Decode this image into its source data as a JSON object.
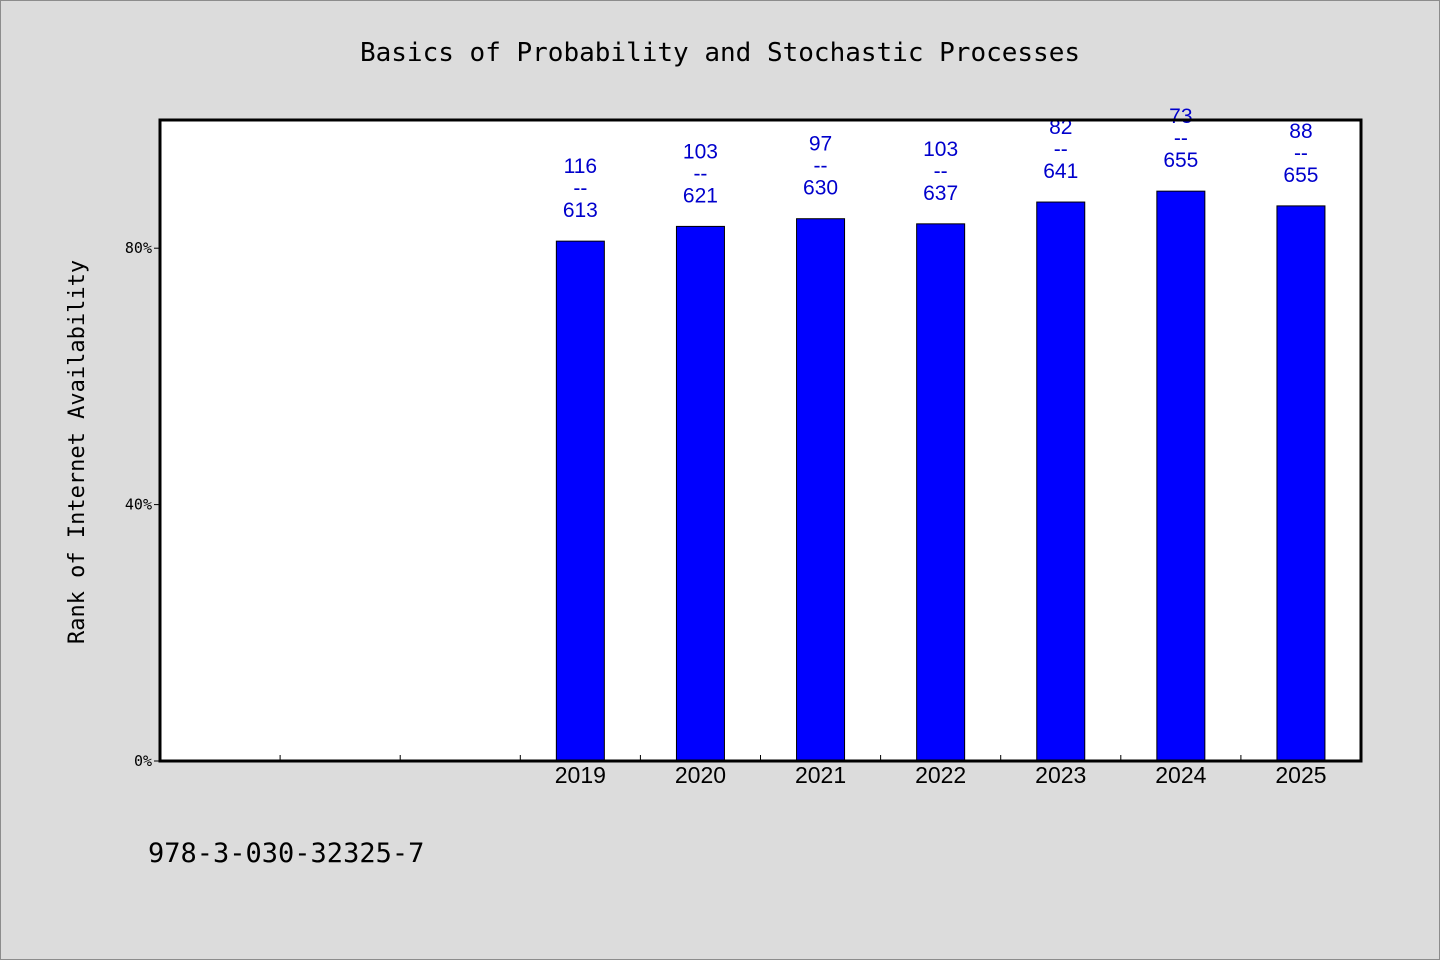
{
  "chart_data": {
    "type": "bar",
    "title": "Basics of Probability and Stochastic Processes",
    "xlabel": "",
    "ylabel": "Rank of Internet Availability",
    "y_tick_labels": [
      "0%",
      "40%",
      "80%"
    ],
    "y_ticks": [
      0,
      40,
      80
    ],
    "ylim": [
      0,
      100
    ],
    "x_slots": 10,
    "categories": [
      "2019",
      "2020",
      "2021",
      "2022",
      "2023",
      "2024",
      "2025"
    ],
    "category_start_slot": 3,
    "values": [
      81.1,
      83.4,
      84.6,
      83.8,
      87.2,
      88.9,
      86.6
    ],
    "labels": [
      {
        "top": "116",
        "sep": "--",
        "bottom": "613"
      },
      {
        "top": "103",
        "sep": "--",
        "bottom": "621"
      },
      {
        "top": "97",
        "sep": "--",
        "bottom": "630"
      },
      {
        "top": "103",
        "sep": "--",
        "bottom": "637"
      },
      {
        "top": "82",
        "sep": "--",
        "bottom": "641"
      },
      {
        "top": "73",
        "sep": "--",
        "bottom": "655"
      },
      {
        "top": "88",
        "sep": "--",
        "bottom": "655"
      }
    ],
    "bar_color": "#0000ff",
    "label_color": "#0000cc",
    "grid": false,
    "legend": "none"
  },
  "footer": {
    "isbn": "978-3-030-32325-7"
  },
  "colors": {
    "background": "#dcdcdc",
    "plot_background": "#ffffff"
  }
}
